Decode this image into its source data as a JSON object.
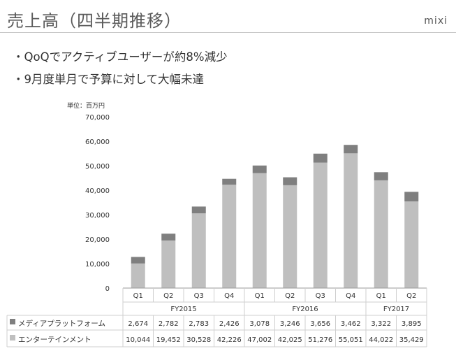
{
  "header": {
    "title": "売上高（四半期推移）",
    "brand": "mixi"
  },
  "bullets": [
    "・QoQでアクティブユーザーが約8%減少",
    "・9月度単月で予算に対して大幅未達"
  ],
  "chart_data": {
    "type": "bar",
    "stacked": true,
    "unit_label": "単位：百万円",
    "ylim": [
      0,
      70000
    ],
    "yticks": [
      "0",
      "10,000",
      "20,000",
      "30,000",
      "40,000",
      "50,000",
      "60,000",
      "70,000"
    ],
    "categories": [
      "Q1",
      "Q2",
      "Q3",
      "Q4",
      "Q1",
      "Q2",
      "Q3",
      "Q4",
      "Q1",
      "Q2"
    ],
    "fiscal_years": [
      {
        "label": "FY2015",
        "span": 4
      },
      {
        "label": "FY2016",
        "span": 4
      },
      {
        "label": "FY2017",
        "span": 2
      }
    ],
    "series": [
      {
        "name": "エンターテインメント",
        "color": "#bfbfbf",
        "values": [
          10044,
          19452,
          30528,
          42226,
          47002,
          42025,
          51276,
          55051,
          44022,
          35429
        ],
        "labels": [
          "10,044",
          "19,452",
          "30,528",
          "42,226",
          "47,002",
          "42,025",
          "51,276",
          "55,051",
          "44,022",
          "35,429"
        ]
      },
      {
        "name": "メディアプラットフォーム",
        "color": "#7f7f7f",
        "values": [
          2674,
          2782,
          2783,
          2426,
          3078,
          3246,
          3656,
          3462,
          3322,
          3895
        ],
        "labels": [
          "2,674",
          "2,782",
          "2,783",
          "2,426",
          "3,078",
          "3,246",
          "3,656",
          "3,462",
          "3,322",
          "3,895"
        ]
      }
    ],
    "legend_placement": "table-bottom",
    "grid": false
  }
}
